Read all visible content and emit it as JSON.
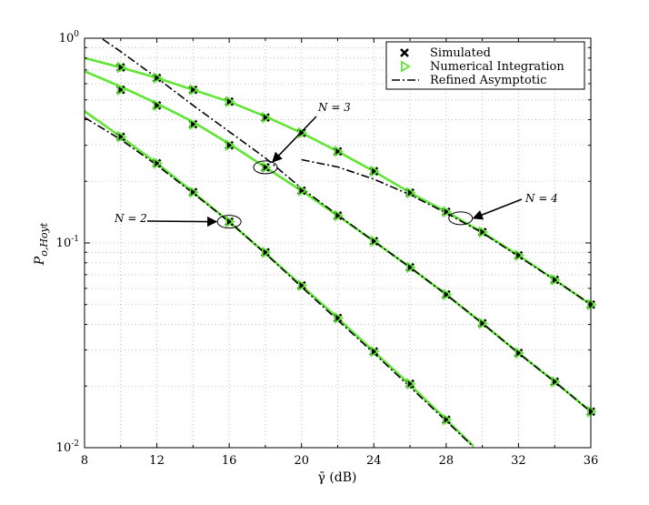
{
  "chart_data": {
    "type": "line",
    "xlabel": "γ̄ (dB)",
    "ylabel": "P_{o,Hoyt}",
    "xlim": [
      8,
      36
    ],
    "ylim": [
      0.01,
      1
    ],
    "yscale": "log",
    "grid": true,
    "legend_position": "top-right",
    "x_ticks": [
      "8",
      "12",
      "16",
      "20",
      "24",
      "28",
      "32",
      "36"
    ],
    "y_ticks": [
      {
        "base": "10",
        "exp": "0"
      },
      {
        "base": "10",
        "exp": "-1"
      },
      {
        "base": "10",
        "exp": "-2"
      }
    ],
    "legend": [
      {
        "label": "Simulated",
        "kind": "simulated"
      },
      {
        "label": "Numerical Integration",
        "kind": "numerical"
      },
      {
        "label": "Refined Asymptotic",
        "kind": "asymptotic"
      }
    ],
    "colors": {
      "numerical": "#5ee632",
      "simulated": "#000000",
      "asymptotic": "#000000"
    },
    "series": [
      {
        "group": "N = 2",
        "numerical": {
          "x": [
            8,
            10,
            12,
            14,
            16,
            18,
            20,
            22,
            24,
            26,
            28,
            29.5
          ],
          "y": [
            0.44,
            0.33,
            0.245,
            0.177,
            0.127,
            0.089,
            0.062,
            0.043,
            0.0295,
            0.0203,
            0.0137,
            0.0102
          ]
        },
        "simulated": {
          "x": [
            10,
            12,
            14,
            16,
            18,
            20,
            22,
            24,
            26,
            28
          ],
          "y": [
            0.33,
            0.245,
            0.177,
            0.127,
            0.09,
            0.062,
            0.043,
            0.0295,
            0.0205,
            0.0137
          ]
        },
        "asymptotic": {
          "x": [
            8,
            10,
            12,
            14,
            16,
            18,
            20,
            22,
            24,
            26,
            28,
            29.5
          ],
          "y": [
            0.41,
            0.32,
            0.24,
            0.175,
            0.127,
            0.089,
            0.061,
            0.042,
            0.029,
            0.0198,
            0.0135,
            0.0101
          ]
        }
      },
      {
        "group": "N = 3",
        "numerical": {
          "x": [
            8,
            10,
            12,
            14,
            16,
            18,
            20,
            22,
            24,
            26,
            28,
            30,
            32,
            34,
            36
          ],
          "y": [
            0.69,
            0.58,
            0.48,
            0.39,
            0.305,
            0.234,
            0.18,
            0.136,
            0.102,
            0.076,
            0.056,
            0.0405,
            0.029,
            0.021,
            0.015
          ]
        },
        "simulated": {
          "x": [
            10,
            12,
            14,
            16,
            18,
            20,
            22,
            24,
            26,
            28,
            30,
            32,
            34,
            36
          ],
          "y": [
            0.56,
            0.47,
            0.38,
            0.3,
            0.234,
            0.18,
            0.136,
            0.102,
            0.076,
            0.056,
            0.0405,
            0.029,
            0.021,
            0.015
          ]
        },
        "asymptotic": {
          "x": [
            9,
            10,
            12,
            14,
            16,
            18,
            20,
            22,
            24,
            26,
            28,
            30,
            32,
            34,
            36
          ],
          "y": [
            0.99,
            0.86,
            0.64,
            0.47,
            0.35,
            0.26,
            0.185,
            0.137,
            0.102,
            0.076,
            0.056,
            0.0405,
            0.029,
            0.021,
            0.015
          ]
        }
      },
      {
        "group": "N = 4",
        "numerical": {
          "x": [
            8,
            10,
            12,
            14,
            16,
            18,
            20,
            22,
            24,
            26,
            28,
            30,
            32,
            34,
            36
          ],
          "y": [
            0.8,
            0.72,
            0.64,
            0.56,
            0.49,
            0.415,
            0.345,
            0.28,
            0.224,
            0.176,
            0.142,
            0.113,
            0.087,
            0.066,
            0.05
          ]
        },
        "simulated": {
          "x": [
            10,
            12,
            14,
            16,
            18,
            20,
            22,
            24,
            26,
            28,
            30,
            32,
            34,
            36
          ],
          "y": [
            0.72,
            0.64,
            0.56,
            0.49,
            0.41,
            0.345,
            0.28,
            0.224,
            0.176,
            0.142,
            0.113,
            0.087,
            0.066,
            0.05
          ]
        },
        "asymptotic": {
          "x": [
            20,
            22,
            24,
            26,
            28,
            30,
            32,
            34,
            36
          ],
          "y": [
            0.255,
            0.235,
            0.205,
            0.172,
            0.14,
            0.112,
            0.086,
            0.066,
            0.05
          ]
        }
      }
    ],
    "annotations": [
      {
        "text": "N = 2",
        "target_x": 16,
        "target_y": 0.127
      },
      {
        "text": "N = 3",
        "target_x": 18,
        "target_y": 0.234
      },
      {
        "text": "N = 4",
        "target_x": 28.8,
        "target_y": 0.132
      }
    ]
  }
}
